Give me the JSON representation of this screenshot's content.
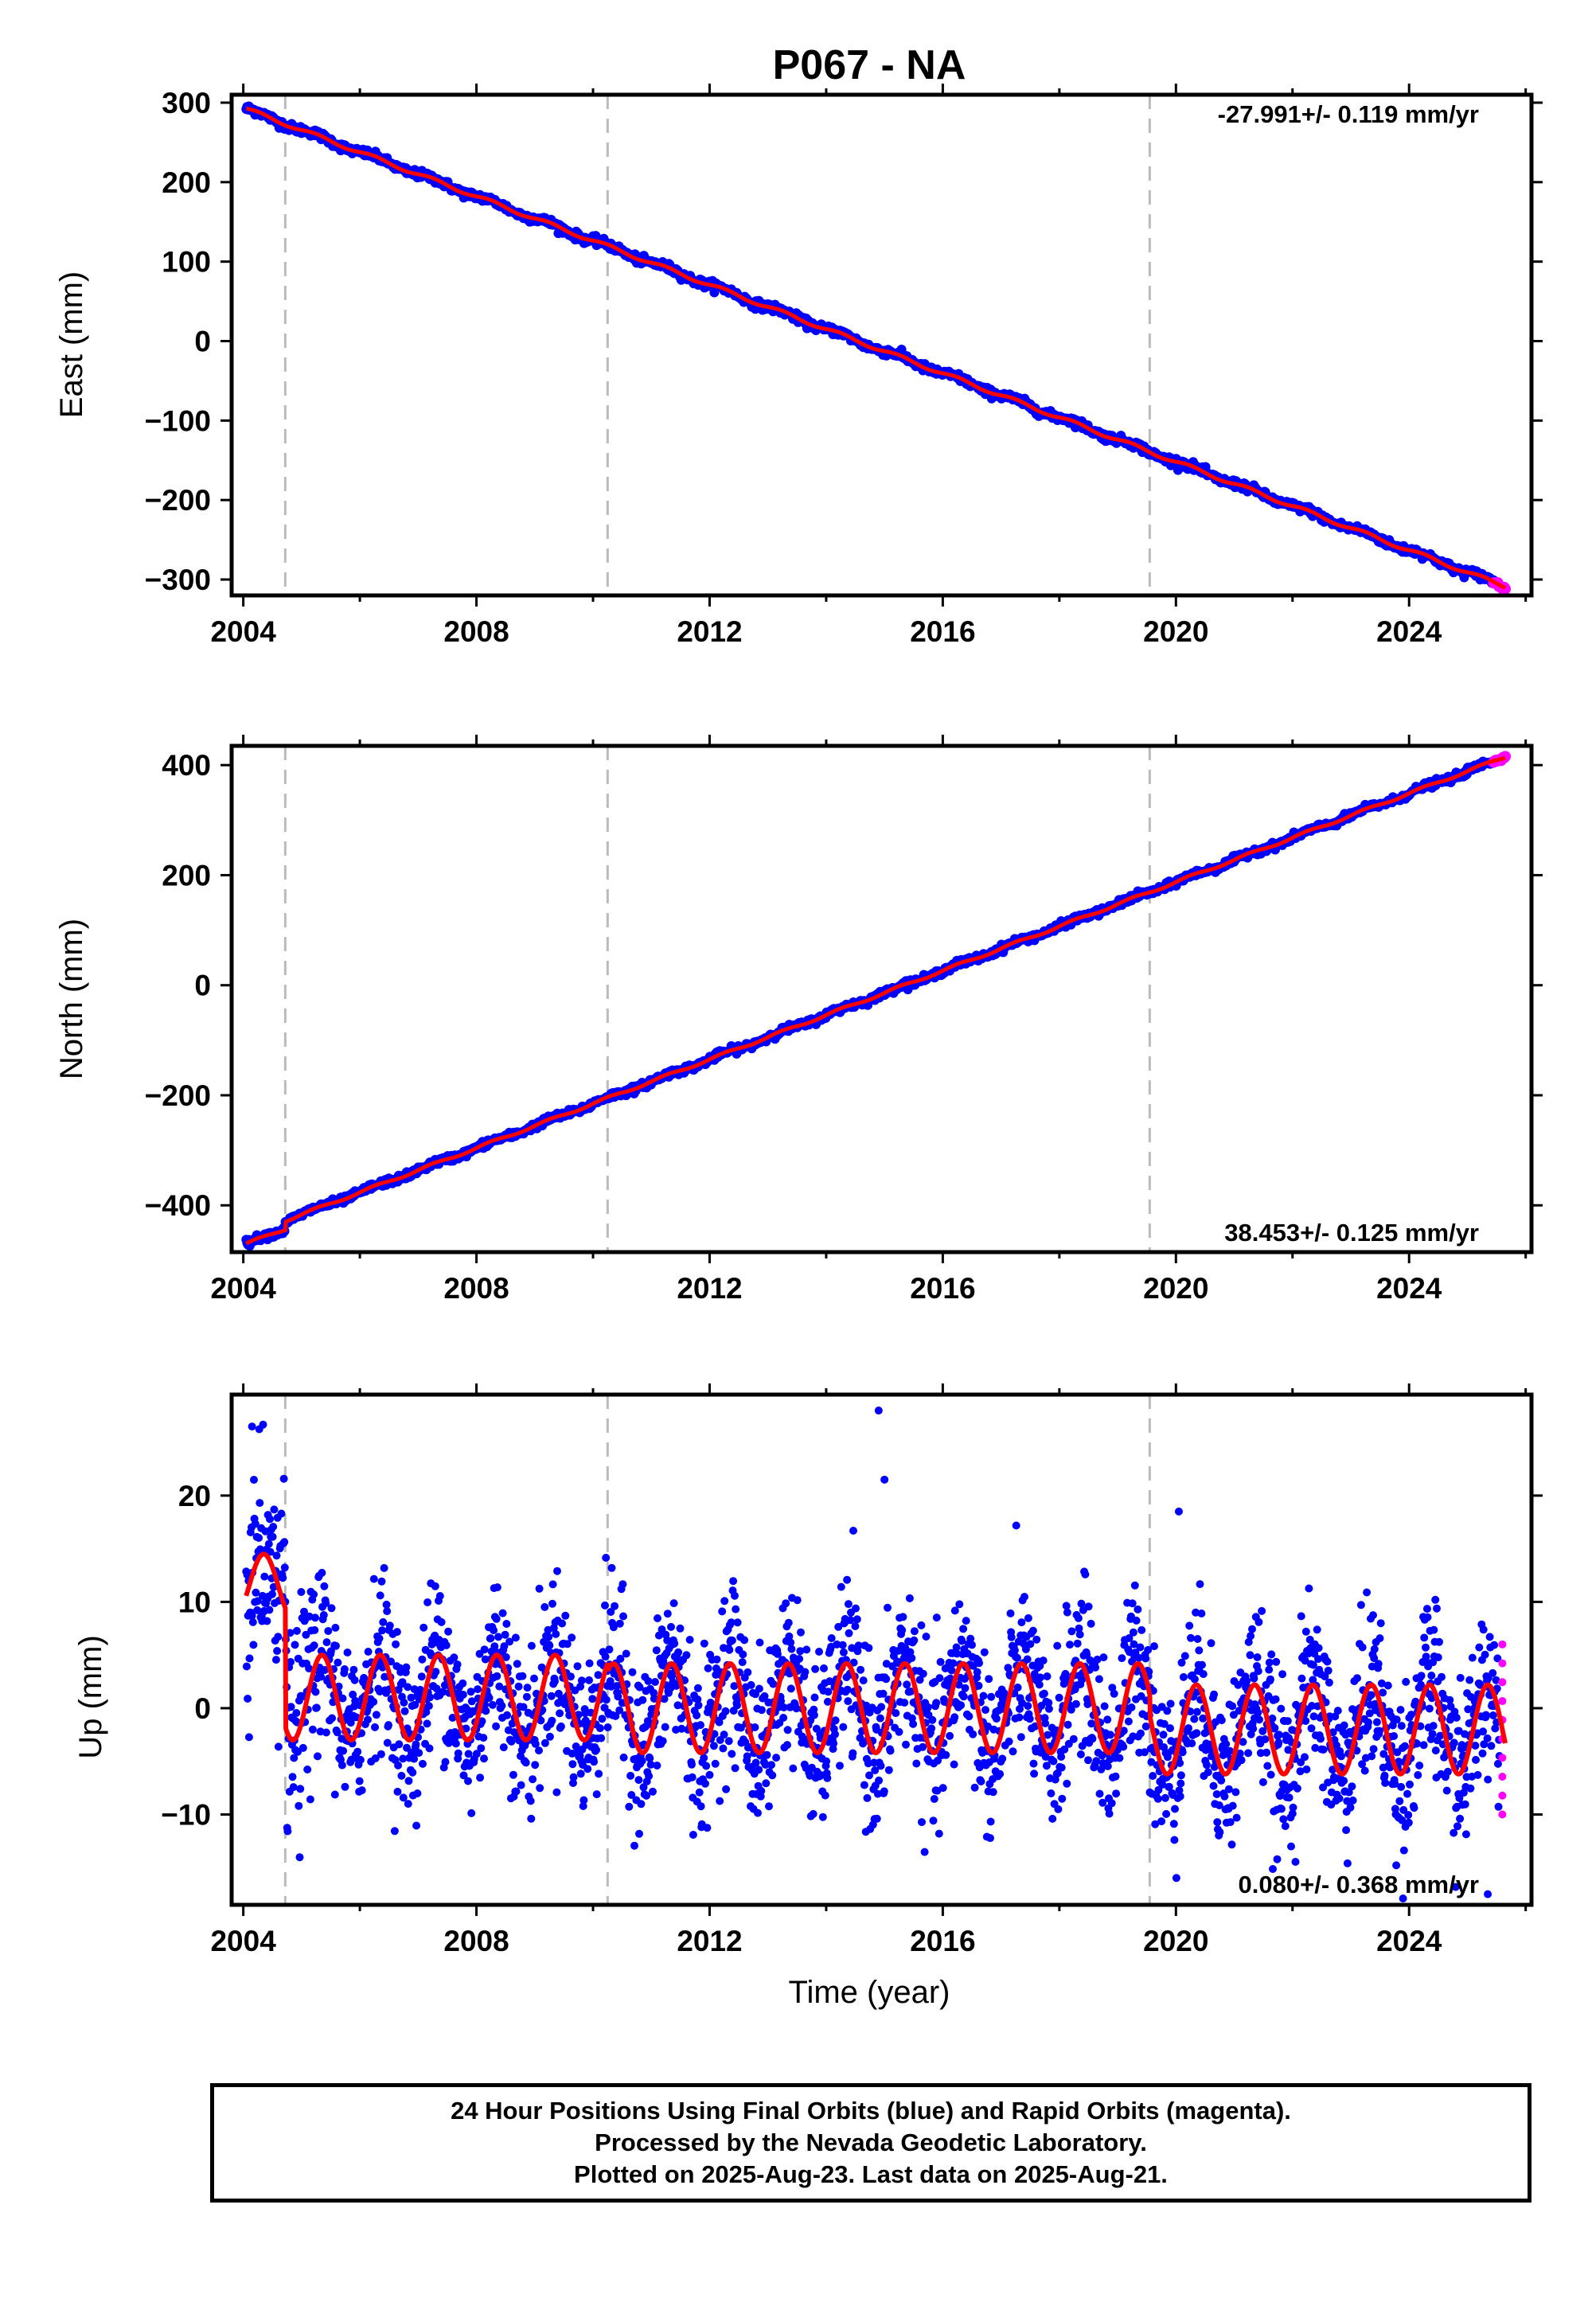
{
  "figure": {
    "title": "P067 - NA",
    "footer": {
      "line1": "24 Hour Positions Using Final Orbits (blue) and Rapid Orbits (magenta).",
      "line2": "Processed by the Nevada Geodetic Laboratory.",
      "line3": "Plotted on 2025-Aug-23. Last data on 2025-Aug-21."
    },
    "colors": {
      "final_orbits": "#0000ff",
      "rapid_orbits": "#ff00ff",
      "model_fit": "#ff0000",
      "offset_lines": "#bbbbbb"
    }
  },
  "chart_data": [
    {
      "type": "scatter",
      "id": "east",
      "ylabel": "East (mm)",
      "xlabel": "",
      "xlim": [
        2003.8,
        2026.1
      ],
      "ylim": [
        -320,
        310
      ],
      "xticks": [
        2004,
        2008,
        2012,
        2016,
        2020,
        2024
      ],
      "yticks": [
        300,
        200,
        100,
        0,
        -100,
        -200,
        -300
      ],
      "ytick_labels": [
        "300",
        "200",
        "100",
        "0",
        "−100",
        "−200",
        "−300"
      ],
      "rate_label": "-27.991+/- 0.119 mm/yr",
      "rate_position": "top-right",
      "offset_lines_x": [
        2004.72,
        2010.25,
        2019.55
      ],
      "trend": {
        "x": [
          2004.05,
          2025.65
        ],
        "y": [
          292,
          -309
        ]
      },
      "noise_mm": 2.5,
      "rapid_orbits_x": [
        2025.45,
        2025.65
      ]
    },
    {
      "type": "scatter",
      "id": "north",
      "ylabel": "North (mm)",
      "xlabel": "",
      "xlim": [
        2003.8,
        2026.1
      ],
      "ylim": [
        -485,
        435
      ],
      "xticks": [
        2004,
        2008,
        2012,
        2016,
        2020,
        2024
      ],
      "yticks": [
        400,
        200,
        0,
        -200,
        -400
      ],
      "ytick_labels": [
        "400",
        "200",
        "0",
        "−200",
        "−400"
      ],
      "rate_label": "38.453+/- 0.125 mm/yr",
      "rate_position": "bottom-right",
      "offset_lines_x": [
        2004.72,
        2010.25,
        2019.55
      ],
      "trend": {
        "x": [
          2004.05,
          2025.65
        ],
        "y": [
          -455,
          415
        ]
      },
      "offset_jump": {
        "x": 2004.72,
        "mm": 15
      },
      "noise_mm": 3,
      "rapid_orbits_x": [
        2025.45,
        2025.65
      ]
    },
    {
      "type": "scatter",
      "id": "up",
      "ylabel": "Up (mm)",
      "xlabel": "Time (year)",
      "xlim": [
        2003.8,
        2026.1
      ],
      "ylim": [
        -18.5,
        29.5
      ],
      "xticks": [
        2004,
        2008,
        2012,
        2016,
        2020,
        2024
      ],
      "yticks": [
        20,
        10,
        0,
        -10
      ],
      "ytick_labels": [
        "20",
        "10",
        "0",
        "−10"
      ],
      "rate_label": "0.080+/- 0.368 mm/yr",
      "rate_position": "bottom-right",
      "offset_lines_x": [
        2004.72,
        2010.25,
        2019.55
      ],
      "seasonal": {
        "segments": [
          {
            "x": [
              2004.05,
              2004.72
            ],
            "mean": 11.5,
            "amplitude": 3.0
          },
          {
            "x": [
              2004.72,
              2010.25
            ],
            "mean": 1.0,
            "amplitude": 4.0
          },
          {
            "x": [
              2010.25,
              2019.55
            ],
            "mean": 0.0,
            "amplitude": 4.2
          },
          {
            "x": [
              2019.55,
              2025.65
            ],
            "mean": -2.0,
            "amplitude": 4.2
          }
        ]
      },
      "noise_mm": 3.8,
      "outliers": [
        {
          "x": 2014.9,
          "y": 28.0
        },
        {
          "x": 2015.0,
          "y": 21.5
        },
        {
          "x": 2004.15,
          "y": 26.5
        },
        {
          "x": 2020.05,
          "y": 18.5
        },
        {
          "x": 2025.35,
          "y": -17.5
        }
      ],
      "rapid_orbits": {
        "x": 2025.6,
        "y_range": [
          -10,
          6
        ]
      }
    }
  ]
}
